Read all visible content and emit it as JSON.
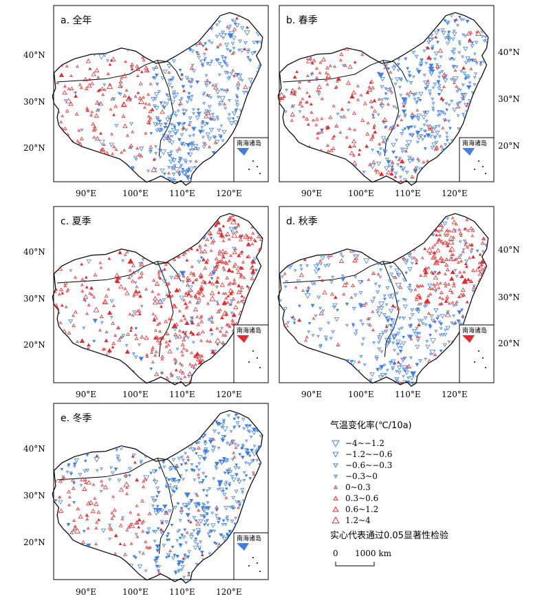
{
  "panels": [
    {
      "label": "a. 全年",
      "season": "annual",
      "warm_region": "west",
      "left_axis": true,
      "right_axis": false
    },
    {
      "label": "b. 春季",
      "season": "spring",
      "warm_region": "west_north",
      "left_axis": false,
      "right_axis": true
    },
    {
      "label": "c. 夏季",
      "season": "summer",
      "warm_region": "most",
      "left_axis": true,
      "right_axis": false
    },
    {
      "label": "d. 秋季",
      "season": "autumn",
      "warm_region": "northeast",
      "left_axis": false,
      "right_axis": true
    },
    {
      "label": "e. 冬季",
      "season": "winter",
      "warm_region": "tibet",
      "left_axis": true,
      "right_axis": false
    }
  ],
  "axes": {
    "lon_ticks": [
      "90°E",
      "100°E",
      "110°E",
      "120°E"
    ],
    "lat_ticks": [
      "40°N",
      "30°N",
      "20°N"
    ]
  },
  "inset_title": "南海诸岛",
  "legend": {
    "title": "气温变化率(℃/10a)",
    "items": [
      {
        "label": "−4~−1.2",
        "kind": "cooling",
        "level": 4
      },
      {
        "label": "−1.2~−0.6",
        "kind": "cooling",
        "level": 3
      },
      {
        "label": "−0.6~−0.3",
        "kind": "cooling",
        "level": 2
      },
      {
        "label": "−0.3~0",
        "kind": "cooling",
        "level": 1
      },
      {
        "label": "0~0.3",
        "kind": "warming",
        "level": 1
      },
      {
        "label": "0.3~0.6",
        "kind": "warming",
        "level": 2
      },
      {
        "label": "0.6~1.2",
        "kind": "warming",
        "level": 3
      },
      {
        "label": "1.2~4",
        "kind": "warming",
        "level": 4
      }
    ],
    "note": "实心代表通过0.05显著性检验",
    "scale_label_start": "0",
    "scale_label_end": "1000 km"
  },
  "colors": {
    "cooling": "#3f7fe6",
    "warming": "#e8282a"
  }
}
